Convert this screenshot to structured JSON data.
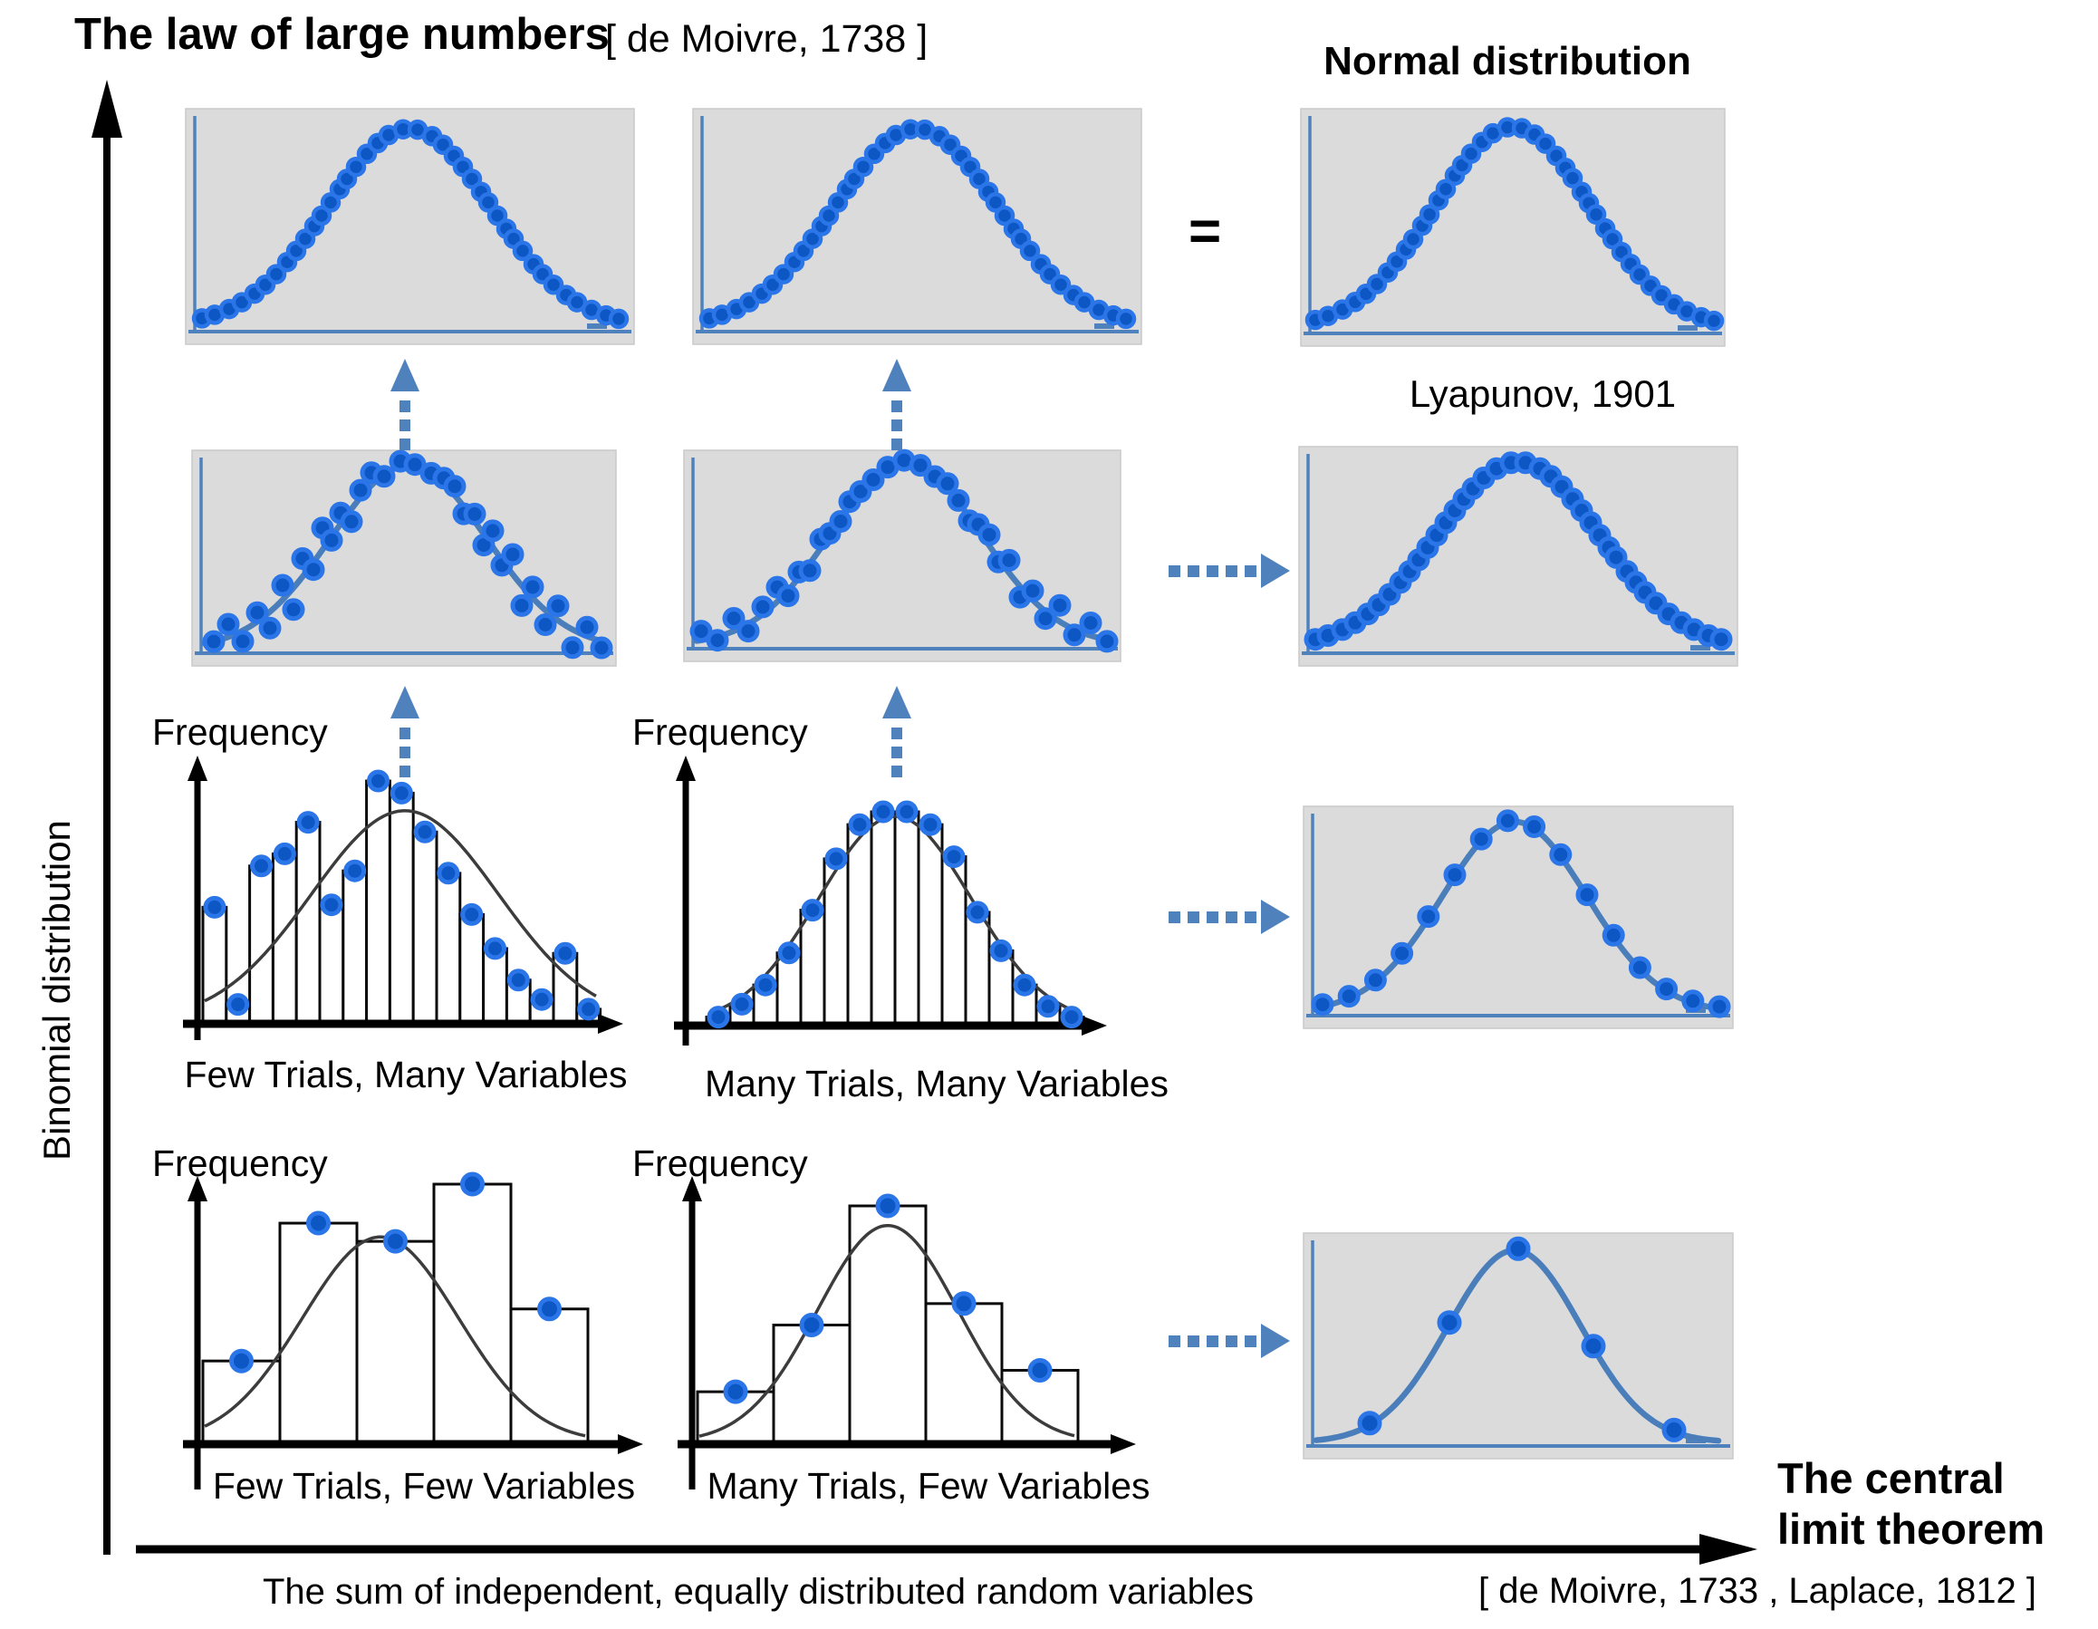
{
  "colors": {
    "panel_bg": "#dbdbdb",
    "panel_border": "#c9c9c9",
    "blue_axis": "#4f81bd",
    "curve_blue": "#4a7ebb",
    "dot_fill": "#0d57c4",
    "dot_ring": "#2a75e8",
    "hist_line": "#0a0a0a",
    "hist_curve": "#3c3c3c",
    "arrow_blue": "#4f81bd",
    "black": "#000000"
  },
  "header": {
    "title": "The law of large numbers",
    "citation": "[ de Moivre, 1738 ]"
  },
  "normal_distribution": {
    "title": "Normal distribution",
    "equals_sign": "=",
    "caption": "Lyapunov, 1901"
  },
  "central_limit": {
    "line1": "The central",
    "line2": "limit theorem",
    "citation": "[ de Moivre, 1733 ,  Laplace, 1812 ]"
  },
  "axis_labels": {
    "y": "Binomial distribution",
    "x": "The sum of independent, equally distributed random variables"
  },
  "frequency_label": "Frequency",
  "captions": {
    "row3_left": "Few Trials, Many Variables",
    "row3_right": "Many Trials, Many Variables",
    "row4_left": "Few Trials, Few Variables",
    "row4_right": "Many Trials, Few Variables"
  },
  "chart_data": [
    {
      "id": "r1p1",
      "type": "scatter",
      "shape": "normal-bell-dots",
      "n_points": 40,
      "noise": [],
      "note": "limit of law of large numbers, left"
    },
    {
      "id": "r1p2",
      "type": "scatter",
      "shape": "normal-bell-dots",
      "n_points": 40,
      "noise": [],
      "note": "limit of law of large numbers, right"
    },
    {
      "id": "r1p3",
      "type": "scatter",
      "shape": "normal-bell-dots",
      "n_points": 40,
      "noise": [],
      "note": "normal distribution panel"
    },
    {
      "id": "r2p1",
      "type": "scatter",
      "shape": "noisy-bell-dots-with-curve",
      "n_points": 34,
      "noise": [
        -2,
        12,
        -14,
        8,
        -20,
        14,
        -26,
        18,
        -10,
        22,
        -6,
        10,
        -16,
        6,
        12,
        -4,
        4,
        0,
        -2,
        4,
        8,
        -10,
        6,
        -14,
        16,
        -8,
        20,
        -24,
        10,
        -18,
        14,
        -22,
        8,
        -12
      ]
    },
    {
      "id": "r2p2",
      "type": "scatter",
      "shape": "noisy-bell-dots-with-curve",
      "n_points": 33,
      "noise": [
        8,
        -6,
        12,
        -10,
        6,
        14,
        -8,
        4,
        -10,
        8,
        0,
        -4,
        4,
        0,
        -2,
        0,
        2,
        0,
        -2,
        4,
        0,
        -6,
        4,
        10,
        -6,
        12,
        -14,
        8,
        -10,
        16,
        -8,
        12,
        -4
      ]
    },
    {
      "id": "r2p3",
      "type": "scatter",
      "shape": "normal-bell-dots",
      "n_points": 38,
      "noise": []
    },
    {
      "id": "r3p3",
      "type": "line+scatter",
      "shape": "normal-curve-with-dots",
      "n_points": 16
    },
    {
      "id": "r4p3",
      "type": "line+scatter",
      "shape": "normal-curve-with-dots",
      "n_points": 5
    },
    {
      "id": "h1",
      "type": "histogram",
      "title": "Few Trials, Many Variables",
      "ylabel": "Frequency",
      "values": [
        0.48,
        0.08,
        0.65,
        0.7,
        0.83,
        0.49,
        0.63,
        1.0,
        0.95,
        0.79,
        0.62,
        0.45,
        0.31,
        0.18,
        0.1,
        0.29,
        0.06
      ],
      "curve_peak": 0.87
    },
    {
      "id": "h2",
      "type": "histogram",
      "title": "Many Trials, Many Variables",
      "ylabel": "Frequency",
      "values": [
        0.04,
        0.1,
        0.19,
        0.34,
        0.54,
        0.78,
        0.94,
        1.0,
        1.0,
        0.94,
        0.79,
        0.53,
        0.35,
        0.19,
        0.09,
        0.04
      ],
      "curve_peak": 0.97
    },
    {
      "id": "h3",
      "type": "histogram",
      "title": "Few Trials, Few Variables",
      "ylabel": "Frequency",
      "values": [
        0.32,
        0.85,
        0.78,
        1.0,
        0.52
      ],
      "curve_peak": 0.79
    },
    {
      "id": "h4",
      "type": "histogram",
      "title": "Many Trials, Few Variables",
      "ylabel": "Frequency",
      "values": [
        0.22,
        0.5,
        1.0,
        0.59,
        0.31
      ],
      "curve_peak": 0.91
    }
  ]
}
